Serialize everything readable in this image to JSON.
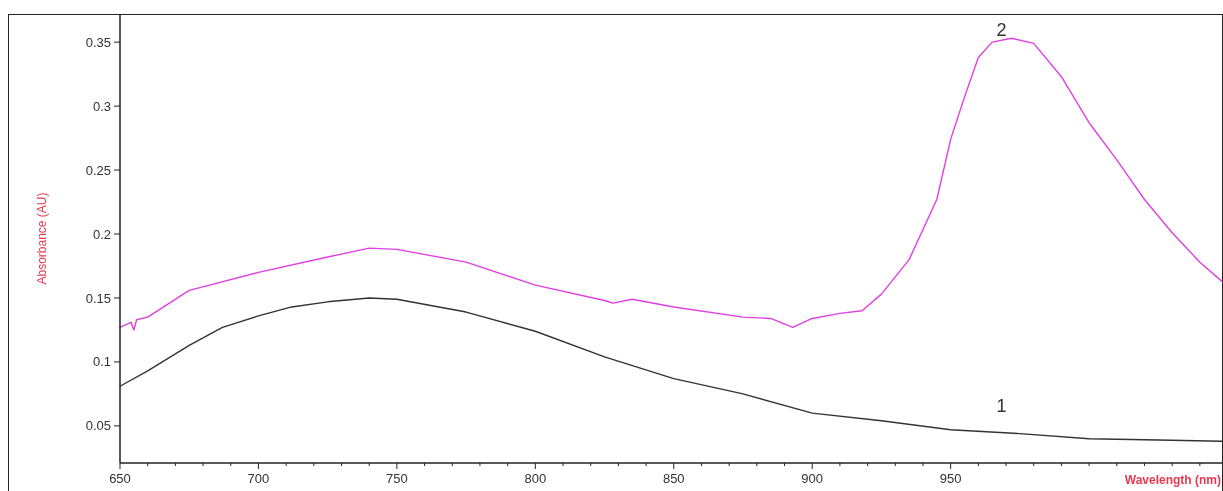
{
  "chart_data": {
    "type": "line",
    "xlabel": "Wavelength (nm)",
    "ylabel": "Absorbance (AU)",
    "xlim": [
      650,
      1048
    ],
    "ylim": [
      0.021,
      0.372
    ],
    "xticks": [
      650,
      {
        "value": 660,
        "label": null
      },
      {
        "value": 670,
        "label": null
      },
      {
        "value": 680,
        "label": null
      },
      {
        "value": 690,
        "label": null
      },
      700,
      {
        "value": 710,
        "label": null
      },
      {
        "value": 720,
        "label": null
      },
      {
        "value": 730,
        "label": null
      },
      {
        "value": 740,
        "label": null
      },
      750,
      {
        "value": 760,
        "label": null
      },
      {
        "value": 770,
        "label": null
      },
      {
        "value": 780,
        "label": null
      },
      {
        "value": 790,
        "label": null
      },
      800,
      {
        "value": 810,
        "label": null
      },
      {
        "value": 820,
        "label": null
      },
      {
        "value": 830,
        "label": null
      },
      {
        "value": 840,
        "label": null
      },
      850,
      {
        "value": 860,
        "label": null
      },
      {
        "value": 870,
        "label": null
      },
      {
        "value": 880,
        "label": null
      },
      {
        "value": 890,
        "label": null
      },
      900,
      {
        "value": 910,
        "label": null
      },
      {
        "value": 920,
        "label": null
      },
      {
        "value": 930,
        "label": null
      },
      {
        "value": 940,
        "label": null
      },
      950,
      {
        "value": 960,
        "label": null
      },
      {
        "value": 970,
        "label": null
      },
      {
        "value": 980,
        "label": null
      },
      {
        "value": 990,
        "label": null
      },
      {
        "value": 1000,
        "label": null
      },
      {
        "value": 1010,
        "label": null
      },
      {
        "value": 1020,
        "label": null
      },
      {
        "value": 1030,
        "label": null
      },
      {
        "value": 1040,
        "label": null
      }
    ],
    "yticks": [
      0.05,
      0.1,
      0.15,
      0.2,
      0.25,
      0.3,
      0.35
    ],
    "grid": false,
    "line_style": "solid",
    "annotations": [
      "1",
      "2"
    ],
    "series": [
      {
        "color": "#333333",
        "x": [
          650,
          660,
          675,
          687,
          700,
          712,
          725,
          740,
          750,
          775,
          800,
          825,
          850,
          875,
          900,
          925,
          950,
          975,
          1000,
          1025,
          1048
        ],
        "values": [
          0.081,
          0.093,
          0.113,
          0.127,
          0.136,
          0.143,
          0.147,
          0.15,
          0.149,
          0.139,
          0.124,
          0.104,
          0.087,
          0.075,
          0.06,
          0.054,
          0.047,
          0.044,
          0.04,
          0.039,
          0.038
        ]
      },
      {
        "color": "#e040e0",
        "x": [
          650,
          654,
          655,
          656,
          660,
          675,
          700,
          725,
          740,
          750,
          775,
          800,
          825,
          828,
          835,
          850,
          875,
          885,
          893,
          900,
          910,
          918,
          925,
          935,
          945,
          950,
          955,
          960,
          965,
          972,
          980,
          990,
          1000,
          1010,
          1020,
          1030,
          1040,
          1048
        ],
        "values": [
          0.127,
          0.131,
          0.125,
          0.133,
          0.135,
          0.156,
          0.17,
          0.182,
          0.189,
          0.188,
          0.178,
          0.16,
          0.148,
          0.146,
          0.149,
          0.143,
          0.135,
          0.134,
          0.127,
          0.134,
          0.138,
          0.14,
          0.153,
          0.18,
          0.227,
          0.274,
          0.307,
          0.338,
          0.35,
          0.353,
          0.349,
          0.323,
          0.287,
          0.258,
          0.227,
          0.201,
          0.178,
          0.163
        ]
      }
    ]
  }
}
